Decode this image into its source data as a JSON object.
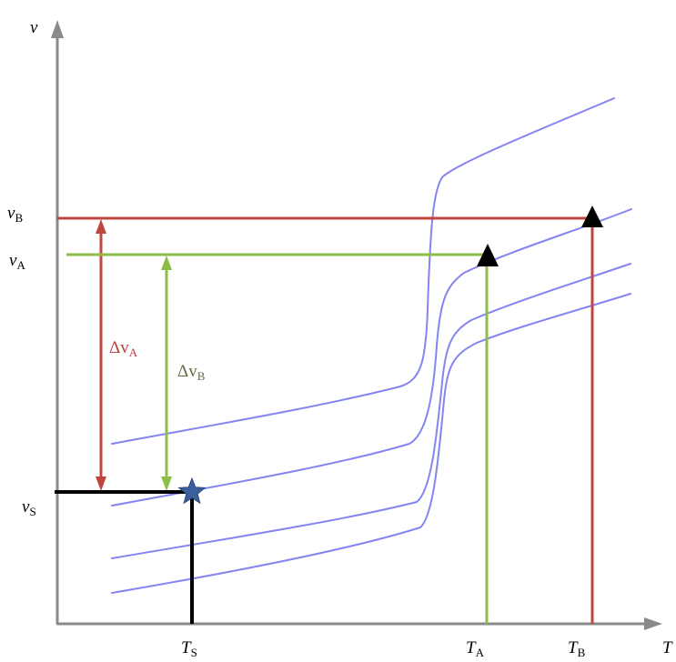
{
  "axes": {
    "y_label": "v",
    "x_label": "T"
  },
  "y_ticks": {
    "vB": {
      "main": "v",
      "sub": "B"
    },
    "vA": {
      "main": "v",
      "sub": "A"
    },
    "vS": {
      "main": "v",
      "sub": "S"
    }
  },
  "x_ticks": {
    "TS": {
      "main": "T",
      "sub": "S"
    },
    "TA": {
      "main": "T",
      "sub": "A"
    },
    "TB": {
      "main": "T",
      "sub": "B"
    }
  },
  "deltas": {
    "dvA": {
      "main": "Δv",
      "sub": "A"
    },
    "dvB": {
      "main": "Δv",
      "sub": "B"
    }
  },
  "colors": {
    "curve": "#6f6ff0",
    "red": "#c0453f",
    "green": "#8cbd47",
    "black": "#000000",
    "axis": "#8a8a8a",
    "star": "#3a5f9a"
  },
  "markers": {
    "star_icon": "star-icon",
    "triangle_icon": "triangle-icon"
  }
}
